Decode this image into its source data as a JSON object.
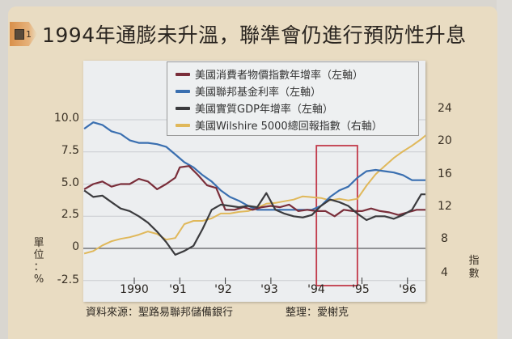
{
  "figure": {
    "tag_number": "1",
    "title": "1994年通膨未升溫，聯準會仍進行預防性升息"
  },
  "axes": {
    "left_unit": "單位：%",
    "left_unit_chars": [
      "單",
      "位",
      "：",
      "%"
    ],
    "right_unit": "指數",
    "right_unit_chars": [
      "指",
      "數"
    ],
    "left_ticks": [
      "10.0",
      "7.5",
      "5.0",
      "2.5",
      "0",
      "-2.5"
    ],
    "right_ticks": [
      "24",
      "20",
      "16",
      "12",
      "8",
      "4"
    ],
    "x_ticks": [
      "1990",
      "'91",
      "'92",
      "'93",
      "'94",
      "'95",
      "'96"
    ]
  },
  "legend": [
    {
      "label": "美國消費者物價指數年增率（左軸）",
      "color": "#7a2e3a"
    },
    {
      "label": "美國聯邦基金利率（左軸）",
      "color": "#3a6fb0"
    },
    {
      "label": "美國實質GDP年增率（左軸）",
      "color": "#3b3b3e"
    },
    {
      "label": "美國Wilshire 5000總回報指數（右軸）",
      "color": "#e0b85a"
    }
  ],
  "footer": {
    "source": "資料來源：聖路易聯邦儲備銀行",
    "compiler": "整理：愛榭克"
  },
  "highlight": {
    "label": "1994 highlight box",
    "x_start": 1994.0,
    "x_end": 1994.9,
    "color": "#c23a4a"
  },
  "chart_data": {
    "type": "line",
    "title": "1994年通膨未升溫，聯準會仍進行預防性升息",
    "xlabel": "",
    "ylabel": "單位：%",
    "y2label": "指數",
    "xlim": [
      1988.9,
      1996.45
    ],
    "ylim": [
      -2.5,
      10.5
    ],
    "y2lim": [
      4,
      25
    ],
    "x_tick_labels": [
      "1990",
      "'91",
      "'92",
      "'93",
      "'94",
      "'95",
      "'96"
    ],
    "x_tick_values": [
      1990,
      1991,
      1992,
      1993,
      1994,
      1995,
      1996
    ],
    "y_tick_labels": [
      "-2.5",
      "0",
      "2.5",
      "5.0",
      "7.5",
      "10.0"
    ],
    "y2_tick_labels": [
      "4",
      "8",
      "12",
      "16",
      "20",
      "24"
    ],
    "grid": true,
    "legend_position": "top-right inside",
    "annotations": [
      "Red rectangle highlighting 1994"
    ],
    "series": [
      {
        "name": "美國消費者物價指數年增率（左軸）",
        "axis": "left",
        "x": [
          1988.9,
          1989.1,
          1989.3,
          1989.5,
          1989.7,
          1989.9,
          1990.1,
          1990.3,
          1990.5,
          1990.7,
          1990.9,
          1991.0,
          1991.2,
          1991.4,
          1991.6,
          1991.8,
          1992.0,
          1992.2,
          1992.4,
          1992.6,
          1992.8,
          1993.0,
          1993.2,
          1993.4,
          1993.6,
          1993.8,
          1994.0,
          1994.2,
          1994.4,
          1994.6,
          1994.8,
          1995.0,
          1995.2,
          1995.4,
          1995.6,
          1995.8,
          1996.0,
          1996.2,
          1996.45
        ],
        "y": [
          4.6,
          5.0,
          5.2,
          4.8,
          5.0,
          5.0,
          5.4,
          5.2,
          4.6,
          5.0,
          5.5,
          6.3,
          6.4,
          5.7,
          4.9,
          4.7,
          3.0,
          3.0,
          3.2,
          3.0,
          3.2,
          3.3,
          3.2,
          3.4,
          2.9,
          3.0,
          2.9,
          2.9,
          2.5,
          3.0,
          2.9,
          2.9,
          3.1,
          2.9,
          2.8,
          2.6,
          2.8,
          3.0,
          3.0
        ]
      },
      {
        "name": "美國聯邦基金利率（左軸）",
        "axis": "left",
        "x": [
          1988.9,
          1989.1,
          1989.3,
          1989.5,
          1989.7,
          1989.9,
          1990.1,
          1990.3,
          1990.5,
          1990.7,
          1990.9,
          1991.1,
          1991.3,
          1991.5,
          1991.7,
          1991.9,
          1992.1,
          1992.3,
          1992.5,
          1992.7,
          1992.9,
          1993.1,
          1993.3,
          1993.5,
          1993.7,
          1993.9,
          1994.1,
          1994.3,
          1994.5,
          1994.7,
          1994.9,
          1995.1,
          1995.3,
          1995.5,
          1995.7,
          1995.9,
          1996.1,
          1996.45
        ],
        "y": [
          9.3,
          9.8,
          9.6,
          9.1,
          8.9,
          8.4,
          8.2,
          8.2,
          8.1,
          7.9,
          7.3,
          6.7,
          6.3,
          5.7,
          5.2,
          4.5,
          4.0,
          3.7,
          3.3,
          3.0,
          3.0,
          3.0,
          3.0,
          3.0,
          3.0,
          3.0,
          3.3,
          4.0,
          4.5,
          4.8,
          5.5,
          6.0,
          6.1,
          6.0,
          5.9,
          5.7,
          5.3,
          5.3
        ]
      },
      {
        "name": "美國實質GDP年增率（左軸）",
        "axis": "left",
        "x": [
          1988.9,
          1989.1,
          1989.3,
          1989.5,
          1989.7,
          1989.9,
          1990.1,
          1990.3,
          1990.5,
          1990.7,
          1990.9,
          1991.1,
          1991.3,
          1991.5,
          1991.7,
          1991.9,
          1992.1,
          1992.3,
          1992.5,
          1992.7,
          1992.9,
          1993.1,
          1993.3,
          1993.5,
          1993.7,
          1993.9,
          1994.1,
          1994.3,
          1994.5,
          1994.7,
          1994.9,
          1995.1,
          1995.3,
          1995.5,
          1995.7,
          1995.9,
          1996.1,
          1996.3,
          1996.45
        ],
        "y": [
          4.5,
          4.0,
          4.1,
          3.6,
          3.1,
          2.9,
          2.5,
          2.0,
          1.3,
          0.5,
          -0.5,
          -0.2,
          0.2,
          1.5,
          3.0,
          3.4,
          3.3,
          3.2,
          3.3,
          3.2,
          4.3,
          3.0,
          2.7,
          2.5,
          2.4,
          2.6,
          3.3,
          3.8,
          3.6,
          3.3,
          2.7,
          2.2,
          2.5,
          2.5,
          2.3,
          2.6,
          3.0,
          4.2,
          4.2
        ]
      },
      {
        "name": "美國Wilshire 5000總回報指數（右軸）",
        "axis": "right",
        "x": [
          1988.9,
          1989.1,
          1989.3,
          1989.5,
          1989.7,
          1989.9,
          1990.1,
          1990.3,
          1990.5,
          1990.7,
          1990.9,
          1991.1,
          1991.3,
          1991.5,
          1991.7,
          1991.9,
          1992.1,
          1992.3,
          1992.5,
          1992.7,
          1992.9,
          1993.1,
          1993.3,
          1993.5,
          1993.7,
          1993.9,
          1994.1,
          1994.3,
          1994.5,
          1994.7,
          1994.9,
          1995.1,
          1995.3,
          1995.5,
          1995.7,
          1995.9,
          1996.1,
          1996.3,
          1996.45
        ],
        "y": [
          6.3,
          6.6,
          7.3,
          7.8,
          8.1,
          8.3,
          8.6,
          9.0,
          8.7,
          8.0,
          8.2,
          9.9,
          10.3,
          10.3,
          10.6,
          11.2,
          11.2,
          11.4,
          11.5,
          11.9,
          12.4,
          12.5,
          12.7,
          12.9,
          13.3,
          13.2,
          13.1,
          12.8,
          13.0,
          12.8,
          13.0,
          14.6,
          16.0,
          17.0,
          18.0,
          18.8,
          19.5,
          20.3,
          21.0
        ]
      }
    ]
  }
}
